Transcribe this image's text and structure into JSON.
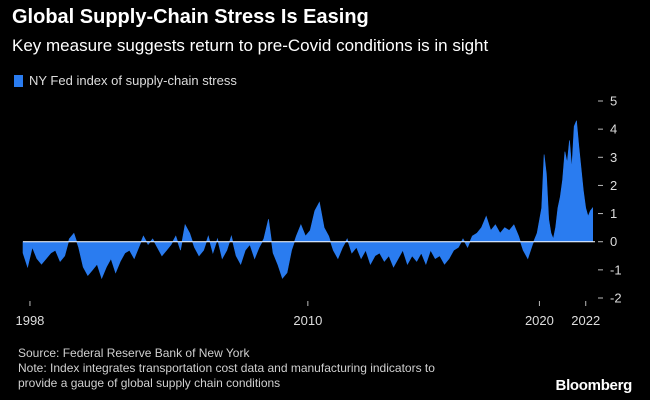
{
  "title": "Global Supply-Chain Stress Is Easing",
  "subtitle": "Key measure suggests return to pre-Covid conditions is in sight",
  "legend": {
    "label": "NY Fed index of supply-chain stress",
    "color": "#2a7cf0"
  },
  "footer": {
    "source": "Source: Federal Reserve Bank of New York",
    "note_line1": "Note: Index integrates transportation cost data and manufacturing indicators to",
    "note_line2": "provide a gauge of global supply chain conditions"
  },
  "brand": "Bloomberg",
  "colors": {
    "background": "#000000",
    "series": "#2a7cf0",
    "zero_line": "#ffffff"
  },
  "chart_data": {
    "type": "area",
    "title": "Global Supply-Chain Stress Is Easing",
    "xlabel": "",
    "ylabel": "",
    "xlim": [
      1997.7,
      2022.4
    ],
    "ylim": [
      -2,
      5
    ],
    "yticks": [
      -2,
      -1,
      0,
      1,
      2,
      3,
      4,
      5
    ],
    "ytick_labels": [
      "-2",
      "-1",
      "0",
      "1",
      "2",
      "3",
      "4",
      "5"
    ],
    "xticks": [
      1998,
      2010,
      2020,
      2022
    ],
    "xtick_labels": [
      "1998",
      "2010",
      "2020",
      "2022"
    ],
    "series": [
      {
        "name": "NY Fed index of supply-chain stress",
        "x": [
          1997.7,
          1997.9,
          1998.1,
          1998.3,
          1998.5,
          1998.7,
          1998.9,
          1999.1,
          1999.3,
          1999.5,
          1999.7,
          1999.9,
          2000.1,
          2000.3,
          2000.5,
          2000.7,
          2000.9,
          2001.1,
          2001.3,
          2001.5,
          2001.7,
          2001.9,
          2002.1,
          2002.3,
          2002.5,
          2002.7,
          2002.9,
          2003.1,
          2003.3,
          2003.5,
          2003.7,
          2003.9,
          2004.1,
          2004.3,
          2004.5,
          2004.7,
          2004.9,
          2005.1,
          2005.3,
          2005.5,
          2005.7,
          2005.9,
          2006.1,
          2006.3,
          2006.5,
          2006.7,
          2006.9,
          2007.1,
          2007.3,
          2007.5,
          2007.7,
          2007.9,
          2008.1,
          2008.3,
          2008.5,
          2008.7,
          2008.9,
          2009.1,
          2009.3,
          2009.5,
          2009.7,
          2009.9,
          2010.1,
          2010.3,
          2010.5,
          2010.7,
          2010.9,
          2011.1,
          2011.3,
          2011.5,
          2011.7,
          2011.9,
          2012.1,
          2012.3,
          2012.5,
          2012.7,
          2012.9,
          2013.1,
          2013.3,
          2013.5,
          2013.7,
          2013.9,
          2014.1,
          2014.3,
          2014.5,
          2014.7,
          2014.9,
          2015.1,
          2015.3,
          2015.5,
          2015.7,
          2015.9,
          2016.1,
          2016.3,
          2016.5,
          2016.7,
          2016.9,
          2017.1,
          2017.3,
          2017.5,
          2017.7,
          2017.9,
          2018.1,
          2018.3,
          2018.5,
          2018.7,
          2018.9,
          2019.1,
          2019.3,
          2019.5,
          2019.7,
          2019.9,
          2020.1,
          2020.2,
          2020.3,
          2020.4,
          2020.5,
          2020.6,
          2020.7,
          2020.8,
          2020.9,
          2021.0,
          2021.1,
          2021.2,
          2021.3,
          2021.4,
          2021.5,
          2021.6,
          2021.7,
          2021.8,
          2021.9,
          2022.0,
          2022.1,
          2022.2,
          2022.3
        ],
        "values": [
          -0.4,
          -0.9,
          -0.2,
          -0.6,
          -0.8,
          -0.6,
          -0.4,
          -0.3,
          -0.7,
          -0.5,
          0.1,
          0.3,
          -0.2,
          -0.9,
          -1.2,
          -1.0,
          -0.8,
          -1.3,
          -0.9,
          -0.6,
          -1.1,
          -0.7,
          -0.4,
          -0.3,
          -0.6,
          -0.2,
          0.2,
          -0.1,
          0.1,
          -0.2,
          -0.5,
          -0.3,
          -0.1,
          0.2,
          -0.3,
          0.6,
          0.3,
          -0.2,
          -0.5,
          -0.3,
          0.2,
          -0.4,
          0.1,
          -0.6,
          -0.3,
          0.2,
          -0.5,
          -0.8,
          -0.3,
          -0.1,
          -0.6,
          -0.2,
          0.1,
          0.8,
          -0.4,
          -0.8,
          -1.3,
          -1.1,
          -0.3,
          0.2,
          0.6,
          0.2,
          0.4,
          1.1,
          1.4,
          0.5,
          0.2,
          -0.3,
          -0.6,
          -0.2,
          0.1,
          -0.4,
          -0.2,
          -0.6,
          -0.3,
          -0.8,
          -0.5,
          -0.4,
          -0.7,
          -0.5,
          -0.9,
          -0.6,
          -0.3,
          -0.8,
          -0.5,
          -0.7,
          -0.4,
          -0.8,
          -0.3,
          -0.6,
          -0.5,
          -0.8,
          -0.6,
          -0.3,
          -0.2,
          0.1,
          -0.2,
          0.2,
          0.3,
          0.5,
          0.9,
          0.4,
          0.6,
          0.3,
          0.5,
          0.4,
          0.6,
          0.2,
          -0.3,
          -0.6,
          -0.1,
          0.3,
          1.2,
          3.1,
          2.4,
          0.8,
          0.3,
          0.1,
          0.5,
          1.2,
          1.6,
          2.2,
          3.2,
          2.8,
          3.6,
          2.6,
          4.1,
          4.3,
          3.4,
          2.6,
          1.8,
          1.2,
          0.9,
          1.1,
          1.2
        ]
      }
    ]
  }
}
